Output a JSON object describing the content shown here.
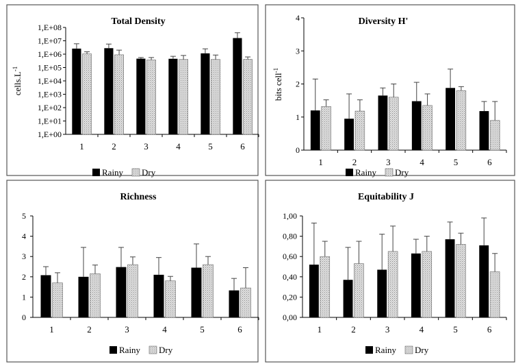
{
  "chart_data": [
    {
      "type": "bar",
      "title": "Total Density",
      "ylabel": "cells.L",
      "ylabel_sup": "-1",
      "yscale": "log",
      "ylim": [
        1,
        100000000
      ],
      "ytick_values": [
        1,
        10,
        100,
        1000,
        10000,
        100000,
        1000000,
        10000000,
        100000000
      ],
      "ytick_labels": [
        "1,E+00",
        "1,E+01",
        "1,E+02",
        "1,E+03",
        "1,E+04",
        "1,E+05",
        "1,E+06",
        "1,E+07",
        "1,E+08"
      ],
      "categories": [
        "1",
        "2",
        "3",
        "4",
        "5",
        "6"
      ],
      "series": [
        {
          "name": "Rainy",
          "values": [
            2600000,
            2800000,
            460000,
            450000,
            1150000,
            16000000
          ],
          "errors_upper": [
            6000000,
            5700000,
            560000,
            690000,
            2500000,
            40000000
          ]
        },
        {
          "name": "Dry",
          "values": [
            1050000,
            900000,
            370000,
            400000,
            400000,
            410000
          ],
          "errors_upper": [
            1500000,
            2000000,
            560000,
            800000,
            860000,
            620000
          ]
        }
      ],
      "legend_position": "bottom"
    },
    {
      "type": "bar",
      "title": "Diversity H'",
      "ylabel": "bits cell",
      "ylabel_sup": "-1",
      "ylim": [
        0,
        4
      ],
      "ytick_values": [
        0,
        1,
        2,
        3,
        4
      ],
      "ytick_labels": [
        "0",
        "1",
        "2",
        "3",
        "4"
      ],
      "categories": [
        "1",
        "2",
        "3",
        "4",
        "5",
        "6"
      ],
      "series": [
        {
          "name": "Rainy",
          "values": [
            1.2,
            0.95,
            1.65,
            1.48,
            1.88,
            1.18
          ],
          "errors_upper": [
            2.15,
            1.7,
            1.88,
            2.05,
            2.45,
            1.47
          ]
        },
        {
          "name": "Dry",
          "values": [
            1.32,
            1.18,
            1.6,
            1.35,
            1.8,
            0.9
          ],
          "errors_upper": [
            1.52,
            1.52,
            2.0,
            1.7,
            1.92,
            1.47
          ]
        }
      ],
      "legend_position": "bottom"
    },
    {
      "type": "bar",
      "title": "Richness",
      "ylabel": "",
      "ylim": [
        0,
        5
      ],
      "ytick_values": [
        0,
        1,
        2,
        3,
        4,
        5
      ],
      "ytick_labels": [
        "0",
        "1",
        "2",
        "3",
        "4",
        "5"
      ],
      "categories": [
        "1",
        "2",
        "3",
        "4",
        "5",
        "6"
      ],
      "series": [
        {
          "name": "Rainy",
          "values": [
            2.08,
            2.0,
            2.48,
            2.1,
            2.45,
            1.33
          ],
          "errors_upper": [
            2.5,
            3.45,
            3.45,
            2.95,
            3.62,
            1.92
          ]
        },
        {
          "name": "Dry",
          "values": [
            1.7,
            2.15,
            2.6,
            1.8,
            2.6,
            1.45
          ],
          "errors_upper": [
            2.2,
            2.58,
            2.98,
            2.02,
            3.0,
            2.45
          ]
        }
      ],
      "legend_position": "bottom"
    },
    {
      "type": "bar",
      "title": "Equitability J",
      "ylabel": "",
      "ylim": [
        0,
        1
      ],
      "ytick_values": [
        0,
        0.2,
        0.4,
        0.6,
        0.8,
        1.0
      ],
      "ytick_labels": [
        "0,00",
        "0,20",
        "0,40",
        "0,60",
        "0,80",
        "1,00"
      ],
      "categories": [
        "1",
        "2",
        "3",
        "4",
        "5",
        "6"
      ],
      "series": [
        {
          "name": "Rainy",
          "values": [
            0.52,
            0.37,
            0.47,
            0.63,
            0.77,
            0.71
          ],
          "errors_upper": [
            0.93,
            0.69,
            0.82,
            0.77,
            0.94,
            0.98
          ]
        },
        {
          "name": "Dry",
          "values": [
            0.6,
            0.53,
            0.65,
            0.65,
            0.72,
            0.45
          ],
          "errors_upper": [
            0.75,
            0.75,
            0.9,
            0.8,
            0.83,
            0.63
          ]
        }
      ],
      "legend_position": "bottom"
    }
  ],
  "colors": {
    "rainy": "#000000",
    "dry": "#d4d4d4",
    "border": "#555555"
  }
}
